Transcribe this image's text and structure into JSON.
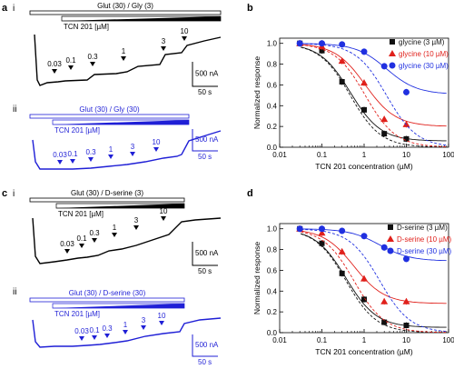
{
  "panel_labels": {
    "a": "a",
    "ai": "i",
    "aii": "ii",
    "b": "b",
    "c": "c",
    "ci": "i",
    "cii": "ii",
    "d": "d"
  },
  "traces": {
    "a_i": {
      "bath_label": "Glut (30) / Gly (3)",
      "drug_label": "TCN 201 [µM]",
      "doses": [
        "0.03",
        "0.1",
        "0.3",
        "1",
        "3",
        "10"
      ],
      "scale_y": "500 nA",
      "scale_x": "50 s",
      "color": "#000000"
    },
    "a_ii": {
      "bath_label": "Glut (30) / Gly (30)",
      "drug_label": "TCN 201 [µM]",
      "doses": [
        "0.03",
        "0.1",
        "0.3",
        "1",
        "3",
        "10"
      ],
      "scale_y": "500 nA",
      "scale_x": "50 s",
      "color": "#1f1fd6"
    },
    "c_i": {
      "bath_label": "Glut (30) / D-serine (3)",
      "drug_label": "TCN 201 [µM]",
      "doses": [
        "0.03",
        "0.1",
        "0.3",
        "1",
        "3",
        "10"
      ],
      "scale_y": "500 nA",
      "scale_x": "50 s",
      "color": "#000000"
    },
    "c_ii": {
      "bath_label": "Glut (30) / D-serine (30)",
      "drug_label": "TCN 201 [µM]",
      "doses": [
        "0.03",
        "0.1",
        "0.3",
        "1",
        "3",
        "10"
      ],
      "scale_y": "500 nA",
      "scale_x": "50 s",
      "color": "#1f1fd6"
    }
  },
  "chart_data": [
    {
      "type": "scatter",
      "title": "",
      "xlabel": "TCN 201 concentration (µM)",
      "ylabel": "Normalized response",
      "xscale": "log",
      "xlim": [
        0.01,
        100
      ],
      "ylim": [
        0,
        1.05
      ],
      "xticks": [
        "0.01",
        "0.1",
        "1",
        "10",
        "100"
      ],
      "yticks": [
        "0.0",
        "0.2",
        "0.4",
        "0.6",
        "0.8",
        "1.0"
      ],
      "legend_position": "top-right",
      "series": [
        {
          "name": "glycine (3 µM)",
          "color": "#111111",
          "marker": "square",
          "x": [
            0.03,
            0.1,
            0.3,
            1,
            3,
            10
          ],
          "y": [
            1.0,
            0.93,
            0.63,
            0.36,
            0.13,
            0.08
          ]
        },
        {
          "name": "glycine (10 µM)",
          "color": "#e0201b",
          "marker": "triangle",
          "x": [
            0.03,
            0.1,
            0.3,
            1,
            3,
            10
          ],
          "y": [
            1.0,
            0.97,
            0.83,
            0.62,
            0.27,
            0.22
          ]
        },
        {
          "name": "glycine (30 µM)",
          "color": "#2030e0",
          "marker": "circle",
          "x": [
            0.03,
            0.1,
            0.3,
            1,
            3,
            10
          ],
          "y": [
            1.0,
            1.0,
            0.99,
            0.92,
            0.78,
            0.53
          ]
        }
      ]
    },
    {
      "type": "scatter",
      "title": "",
      "xlabel": "TCN 201 concentration (µM)",
      "ylabel": "Normalized response",
      "xscale": "log",
      "xlim": [
        0.01,
        100
      ],
      "ylim": [
        0,
        1.05
      ],
      "xticks": [
        "0.01",
        "0.1",
        "1",
        "10",
        "100"
      ],
      "yticks": [
        "0.0",
        "0.2",
        "0.4",
        "0.6",
        "0.8",
        "1.0"
      ],
      "legend_position": "top-right",
      "series": [
        {
          "name": "D-serine (3 µM)",
          "color": "#111111",
          "marker": "square",
          "x": [
            0.03,
            0.1,
            0.3,
            1,
            3,
            10
          ],
          "y": [
            1.0,
            0.86,
            0.57,
            0.32,
            0.1,
            0.07
          ]
        },
        {
          "name": "D-serine (10 µM)",
          "color": "#e0201b",
          "marker": "triangle",
          "x": [
            0.03,
            0.1,
            0.3,
            1,
            3,
            10
          ],
          "y": [
            1.0,
            0.96,
            0.78,
            0.52,
            0.3,
            0.3
          ]
        },
        {
          "name": "D-serine (30 µM)",
          "color": "#2030e0",
          "marker": "circle",
          "x": [
            0.03,
            0.1,
            0.3,
            1,
            3,
            10
          ],
          "y": [
            1.0,
            1.0,
            0.98,
            0.93,
            0.82,
            0.71
          ]
        }
      ]
    }
  ]
}
